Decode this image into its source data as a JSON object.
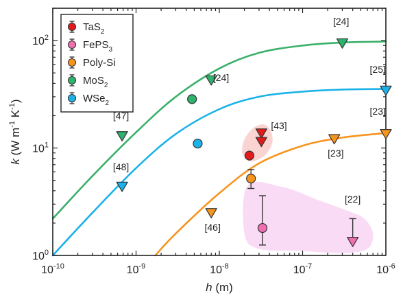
{
  "chart_data": {
    "type": "scatter",
    "x_scale": "log",
    "y_scale": "log",
    "xlim": [
      1e-10,
      1e-06
    ],
    "ylim": [
      1,
      200
    ],
    "xlabel": {
      "var": "h",
      "rest": " (m)"
    },
    "ylabel": {
      "var": "k",
      "rest": " (W m",
      "sup1": "-1",
      "mid": " K",
      "sup2": "-1",
      "end": ")"
    },
    "x_ticks": [
      {
        "value": 1e-10,
        "base": "10",
        "exp": "-10"
      },
      {
        "value": 1e-09,
        "base": "10",
        "exp": "-9"
      },
      {
        "value": 1e-08,
        "base": "10",
        "exp": "-8"
      },
      {
        "value": 1e-07,
        "base": "10",
        "exp": "-7"
      },
      {
        "value": 1e-06,
        "base": "10",
        "exp": "-6"
      }
    ],
    "y_ticks": [
      {
        "value": 1,
        "base": "10",
        "exp": "0"
      },
      {
        "value": 10,
        "base": "10",
        "exp": "1"
      },
      {
        "value": 100,
        "base": "10",
        "exp": "2"
      }
    ],
    "legend": {
      "position": "top-left",
      "entries": [
        {
          "main": "TaS",
          "sub": "2",
          "color": "#e31a1c"
        },
        {
          "main": "FePS",
          "sub": "3",
          "color": "#f06fb0"
        },
        {
          "main": "Poly-Si",
          "sub": "",
          "color": "#f7941d"
        },
        {
          "main": "MoS",
          "sub": "2",
          "color": "#2db36c"
        },
        {
          "main": "WSe",
          "sub": "2",
          "color": "#1ab2e8"
        }
      ]
    },
    "curves": [
      {
        "material": "MoS2",
        "color": "#3ab06a",
        "x": [
          1e-10,
          3e-10,
          1e-09,
          3e-09,
          1e-08,
          3e-08,
          1e-07,
          3e-07,
          1e-06
        ],
        "y": [
          2.2,
          5.5,
          14,
          30,
          55,
          77,
          90,
          96,
          98
        ]
      },
      {
        "material": "WSe2",
        "color": "#1ab2e8",
        "x": [
          1e-10,
          3e-10,
          1e-09,
          3e-09,
          1e-08,
          3e-08,
          1e-07,
          3e-07,
          1e-06
        ],
        "y": [
          1.0,
          2.5,
          6.5,
          13.5,
          23,
          30,
          33.5,
          35,
          35.5
        ]
      },
      {
        "material": "Poly-Si",
        "color": "#f7941d",
        "x": [
          1.7e-09,
          3e-09,
          1e-08,
          3e-08,
          1e-07,
          3e-07,
          1e-06
        ],
        "y": [
          1.0,
          1.6,
          3.8,
          7.2,
          10.5,
          12.5,
          13.8
        ]
      }
    ],
    "shaded_regions": [
      {
        "color": "#f4a09a",
        "opacity": 0.45,
        "outline": [
          [
            2e-08,
            12
          ],
          [
            2.6e-08,
            15.5
          ],
          [
            3.5e-08,
            16.5
          ],
          [
            4.2e-08,
            14
          ],
          [
            4.3e-08,
            11
          ],
          [
            3.5e-08,
            8.5
          ],
          [
            2.4e-08,
            7.5
          ],
          [
            1.9e-08,
            8.8
          ]
        ]
      },
      {
        "color": "#f0a6e6",
        "opacity": 0.4,
        "outline": [
          [
            2.2e-08,
            4.5
          ],
          [
            6e-08,
            4.3
          ],
          [
            1.5e-07,
            3.3
          ],
          [
            3.5e-07,
            2.6
          ],
          [
            5.5e-07,
            2.2
          ],
          [
            7e-07,
            1.6
          ],
          [
            6e-07,
            1.15
          ],
          [
            3e-07,
            1.05
          ],
          [
            1e-07,
            1.1
          ],
          [
            3e-08,
            1.15
          ],
          [
            2e-08,
            1.6
          ]
        ]
      }
    ],
    "points": [
      {
        "material": "TaS2",
        "marker": "circle",
        "x": 2.3e-08,
        "y": 8.5,
        "color": "#e31a1c"
      },
      {
        "material": "TaS2",
        "marker": "triangle",
        "x": 3.2e-08,
        "y": 13.8,
        "color": "#e31a1c"
      },
      {
        "material": "TaS2",
        "marker": "triangle",
        "x": 3.2e-08,
        "y": 11.5,
        "color": "#e31a1c"
      },
      {
        "material": "FePS3",
        "marker": "circle",
        "x": 3.3e-08,
        "y": 1.8,
        "color": "#f06fb0",
        "err": [
          1.25,
          3.6
        ]
      },
      {
        "material": "FePS3",
        "marker": "triangle",
        "x": 4e-07,
        "y": 1.35,
        "color": "#f06fb0",
        "err": [
          1.35,
          2.2
        ]
      },
      {
        "material": "Poly-Si",
        "marker": "circle",
        "x": 2.4e-08,
        "y": 5.2,
        "color": "#f7941d",
        "err": [
          4.2,
          6.3
        ]
      },
      {
        "material": "Poly-Si",
        "marker": "triangle",
        "x": 8e-09,
        "y": 2.5,
        "color": "#f7941d"
      },
      {
        "material": "Poly-Si",
        "marker": "triangle",
        "x": 2.4e-07,
        "y": 12.2,
        "color": "#f7941d"
      },
      {
        "material": "Poly-Si",
        "marker": "triangle",
        "x": 1e-06,
        "y": 13.6,
        "color": "#f7941d"
      },
      {
        "material": "MoS2",
        "marker": "circle",
        "x": 4.7e-09,
        "y": 28.5,
        "color": "#2db36c"
      },
      {
        "material": "MoS2",
        "marker": "triangle",
        "x": 6.8e-10,
        "y": 13.0,
        "color": "#2db36c"
      },
      {
        "material": "MoS2",
        "marker": "triangle",
        "x": 8e-09,
        "y": 43,
        "color": "#2db36c"
      },
      {
        "material": "MoS2",
        "marker": "triangle",
        "x": 3e-07,
        "y": 95,
        "color": "#2db36c"
      },
      {
        "material": "WSe2",
        "marker": "circle",
        "x": 5.5e-09,
        "y": 11.0,
        "color": "#1ab2e8"
      },
      {
        "material": "WSe2",
        "marker": "triangle",
        "x": 6.8e-10,
        "y": 4.4,
        "color": "#1ab2e8"
      },
      {
        "material": "WSe2",
        "marker": "triangle",
        "x": 1e-06,
        "y": 34.5,
        "color": "#1ab2e8"
      }
    ],
    "annotations": [
      {
        "text": "[47]",
        "x": 6.6e-10,
        "y": 18.5
      },
      {
        "text": "[48]",
        "x": 6.6e-10,
        "y": 6.2
      },
      {
        "text": "[24]",
        "x": 1.05e-08,
        "y": 42
      },
      {
        "text": "[24]",
        "x": 2.9e-07,
        "y": 140
      },
      {
        "text": "[43]",
        "x": 5.2e-08,
        "y": 15
      },
      {
        "text": "[46]",
        "x": 8.3e-09,
        "y": 1.7
      },
      {
        "text": "[23]",
        "x": 2.5e-07,
        "y": 8.3
      },
      {
        "text": "[23]",
        "x": 8e-07,
        "y": 20.5
      },
      {
        "text": "[25]",
        "x": 8e-07,
        "y": 50
      },
      {
        "text": "[22]",
        "x": 4e-07,
        "y": 3.1
      }
    ]
  }
}
